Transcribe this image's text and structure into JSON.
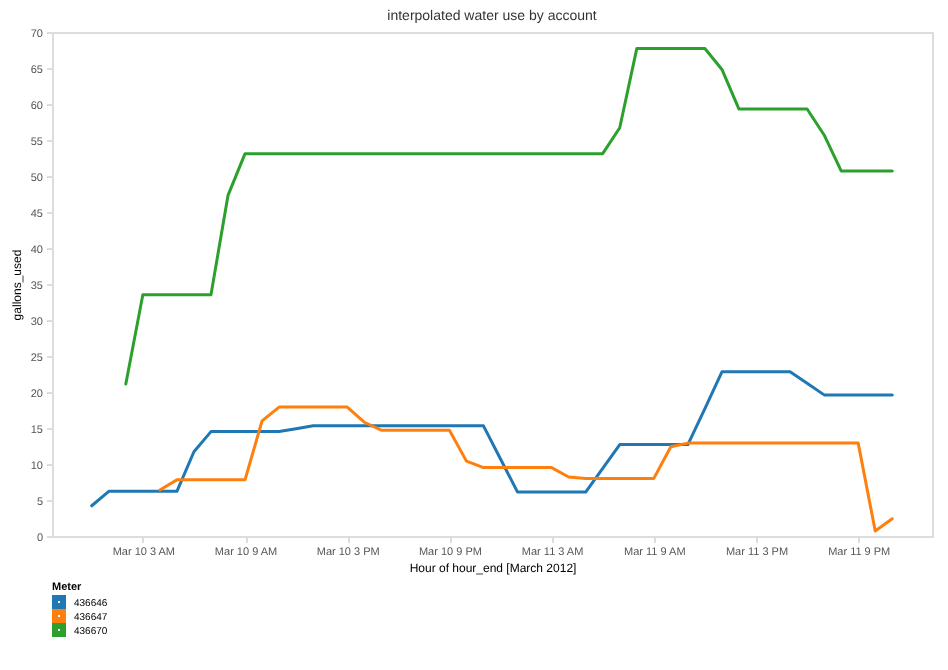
{
  "chart_data": {
    "type": "line",
    "title": "interpolated water use by account",
    "xlabel": "Hour of hour_end [March 2012]",
    "ylabel": "gallons_used",
    "legend_title": "Meter",
    "legend": "bottom left",
    "grid": false,
    "marker": "none",
    "line_style": "solid",
    "xlim": [
      "2012-03-09T21:40",
      "2012-03-12T01:20"
    ],
    "xticks": [
      {
        "value": "2012-03-10T03:00",
        "label": "Mar 10 3 AM"
      },
      {
        "value": "2012-03-10T09:00",
        "label": "Mar 10 9 AM"
      },
      {
        "value": "2012-03-10T15:00",
        "label": "Mar 10 3 PM"
      },
      {
        "value": "2012-03-10T21:00",
        "label": "Mar 10 9 PM"
      },
      {
        "value": "2012-03-11T03:00",
        "label": "Mar 11 3 AM"
      },
      {
        "value": "2012-03-11T09:00",
        "label": "Mar 11 9 AM"
      },
      {
        "value": "2012-03-11T15:00",
        "label": "Mar 11 3 PM"
      },
      {
        "value": "2012-03-11T21:00",
        "label": "Mar 11 9 PM"
      }
    ],
    "ylim": [
      0,
      70
    ],
    "yticks": [
      0,
      5,
      10,
      15,
      20,
      25,
      30,
      35,
      40,
      45,
      50,
      55,
      60,
      65,
      70
    ],
    "series": [
      {
        "name": "436646",
        "color": "#1f77b4",
        "x": [
          "2012-03-10T00:00",
          "2012-03-10T01:00",
          "2012-03-10T05:00",
          "2012-03-10T06:00",
          "2012-03-10T07:00",
          "2012-03-10T11:00",
          "2012-03-10T12:00",
          "2012-03-10T13:00",
          "2012-03-10T23:00",
          "2012-03-11T00:00",
          "2012-03-11T01:00",
          "2012-03-11T05:00",
          "2012-03-11T06:00",
          "2012-03-11T07:00",
          "2012-03-11T11:00",
          "2012-03-11T12:00",
          "2012-03-11T13:00",
          "2012-03-11T17:00",
          "2012-03-11T18:00",
          "2012-03-11T19:00",
          "2012-03-11T23:00"
        ],
        "values": [
          4.2,
          6.2,
          6.2,
          11.7,
          14.5,
          14.5,
          14.9,
          15.3,
          15.3,
          10.7,
          6.1,
          6.1,
          9.4,
          12.7,
          12.7,
          17.7,
          22.8,
          22.8,
          21.2,
          19.6,
          19.6
        ]
      },
      {
        "name": "436647",
        "color": "#ff7f0e",
        "x": [
          "2012-03-10T04:00",
          "2012-03-10T05:00",
          "2012-03-10T09:00",
          "2012-03-10T10:00",
          "2012-03-10T11:00",
          "2012-03-10T15:00",
          "2012-03-10T16:00",
          "2012-03-10T17:00",
          "2012-03-10T21:00",
          "2012-03-10T22:00",
          "2012-03-10T23:00",
          "2012-03-11T03:00",
          "2012-03-11T04:00",
          "2012-03-11T05:00",
          "2012-03-11T09:00",
          "2012-03-11T10:00",
          "2012-03-11T11:00",
          "2012-03-11T21:00",
          "2012-03-11T22:00",
          "2012-03-11T23:00"
        ],
        "values": [
          6.4,
          7.8,
          7.8,
          16,
          17.9,
          17.9,
          15.8,
          14.7,
          14.7,
          10.4,
          9.5,
          9.5,
          8.2,
          8,
          8,
          12.4,
          12.9,
          12.9,
          0.7,
          2.4
        ]
      },
      {
        "name": "436670",
        "color": "#2ca02c",
        "x": [
          "2012-03-10T02:00",
          "2012-03-10T03:00",
          "2012-03-10T07:00",
          "2012-03-10T08:00",
          "2012-03-10T09:00",
          "2012-03-11T06:00",
          "2012-03-11T07:00",
          "2012-03-11T08:00",
          "2012-03-11T12:00",
          "2012-03-11T13:00",
          "2012-03-11T14:00",
          "2012-03-11T18:00",
          "2012-03-11T19:00",
          "2012-03-11T20:00",
          "2012-03-11T23:00"
        ],
        "values": [
          21.1,
          33.5,
          33.5,
          47.3,
          53.1,
          53.1,
          56.7,
          67.7,
          67.7,
          64.8,
          59.3,
          59.3,
          55.7,
          50.7,
          50.7
        ]
      }
    ]
  }
}
